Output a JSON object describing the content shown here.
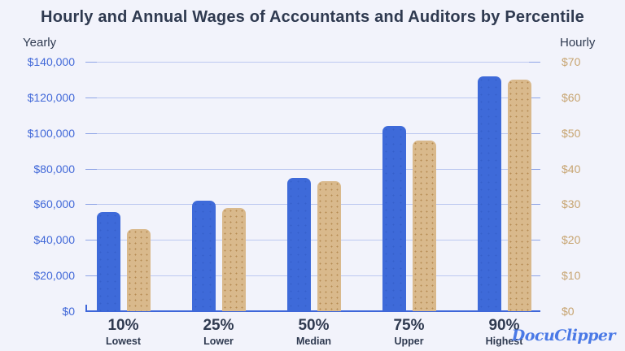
{
  "title": "Hourly and Annual Wages of Accountants and Auditors by Percentile",
  "watermark": {
    "text": "DocuClipper"
  },
  "colors": {
    "background": "#f2f3fb",
    "title_text": "#2f3a50",
    "yearly_bar": "#3e6ad9",
    "yearly_bar_dot": "#3560cc",
    "hourly_bar": "#d9b98c",
    "hourly_bar_dot": "#b58a52",
    "left_tick_text": "#4168d8",
    "right_tick_text": "#c7a470",
    "gridline": "#bcc8f0",
    "grid_edge_tick": "#8ea4e6",
    "baseline": "#3e66d9",
    "category_text": "#2f3a50",
    "logo_text": "#4a79e6"
  },
  "chart_data": {
    "type": "bar",
    "title": "Hourly and Annual Wages of Accountants and Auditors by Percentile",
    "categories": [
      "10%",
      "25%",
      "50%",
      "75%",
      "90%"
    ],
    "category_sublabels": [
      "Lowest",
      "Lower",
      "Median",
      "Upper",
      "Highest"
    ],
    "series": [
      {
        "name": "Yearly",
        "axis": "left",
        "values": [
          55500,
          62000,
          75000,
          104000,
          132000
        ]
      },
      {
        "name": "Hourly",
        "axis": "right",
        "values": [
          23,
          29,
          36.5,
          48,
          65
        ]
      }
    ],
    "left_axis": {
      "label": "Yearly",
      "ylim": [
        0,
        140000
      ],
      "tick_step": 20000,
      "tick_labels": [
        "$0",
        "$20,000",
        "$40,000",
        "$60,000",
        "$80,000",
        "$100,000",
        "$120,000",
        "$140,000"
      ]
    },
    "right_axis": {
      "label": "Hourly",
      "ylim": [
        0,
        70
      ],
      "tick_step": 10,
      "tick_labels": [
        "$0",
        "$10",
        "$20",
        "$30",
        "$40",
        "$50",
        "$60",
        "$70"
      ]
    },
    "grid": true,
    "legend": false
  }
}
